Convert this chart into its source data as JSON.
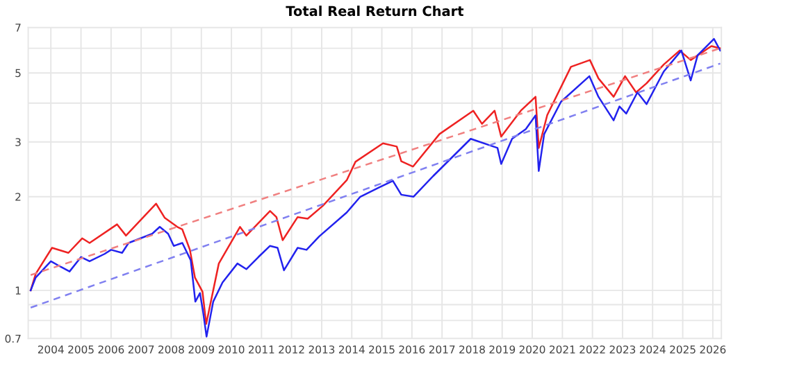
{
  "chart_data": {
    "type": "line",
    "title": "Total Real Return Chart",
    "log": "y",
    "grid": true,
    "marker": "none",
    "xlim": [
      "2003-04-01",
      "2026-04-15"
    ],
    "xticks": [
      "2004",
      "2005",
      "2006",
      "2007",
      "2008",
      "2009",
      "2010",
      "2011",
      "2012",
      "2013",
      "2014",
      "2015",
      "2016",
      "2017",
      "2018",
      "2019",
      "2020",
      "2021",
      "2022",
      "2023",
      "2024",
      "2025",
      "2026"
    ],
    "ylim": [
      0.7,
      7
    ],
    "yticks": [
      0.7,
      {
        "value": 0.8,
        "label": null
      },
      {
        "value": 0.9,
        "label": null
      },
      1,
      2,
      3,
      {
        "value": 4,
        "label": null
      },
      5,
      {
        "value": 6,
        "label": null
      },
      7
    ],
    "series": [
      {
        "color": "#ee2222",
        "line_style": "solid",
        "x": [
          "2003-05-01",
          "2003-07-01",
          "2004-01-15",
          "2004-08-01",
          "2005-01-15",
          "2005-04-15",
          "2006-03-15",
          "2006-07-01",
          "2007-07-01",
          "2007-10-15",
          "2008-03-15",
          "2008-05-15",
          "2008-08-15",
          "2008-10-15",
          "2009-01-15",
          "2009-03-01",
          "2009-08-01",
          "2010-04-15",
          "2010-07-01",
          "2011-04-15",
          "2011-07-01",
          "2011-09-15",
          "2012-03-15",
          "2012-07-15",
          "2013-01-15",
          "2013-11-01",
          "2014-02-15",
          "2015-01-15",
          "2015-07-01",
          "2015-08-25",
          "2016-01-15",
          "2016-12-01",
          "2018-01-15",
          "2018-05-01",
          "2018-10-01",
          "2018-12-20",
          "2019-08-15",
          "2020-02-10",
          "2020-03-20",
          "2020-07-01",
          "2021-04-15",
          "2021-12-01",
          "2022-03-15",
          "2022-09-15",
          "2023-02-01",
          "2023-06-15",
          "2023-10-20",
          "2024-05-15",
          "2024-11-25",
          "2025-04-08",
          "2025-12-15",
          "2026-04-01"
        ],
        "values": [
          1.0,
          1.13,
          1.37,
          1.32,
          1.47,
          1.42,
          1.63,
          1.5,
          1.9,
          1.71,
          1.6,
          1.57,
          1.35,
          1.1,
          0.99,
          0.78,
          1.22,
          1.6,
          1.5,
          1.8,
          1.72,
          1.45,
          1.72,
          1.7,
          1.87,
          2.26,
          2.59,
          2.97,
          2.9,
          2.6,
          2.5,
          3.18,
          3.78,
          3.43,
          3.78,
          3.12,
          3.78,
          4.19,
          2.87,
          3.66,
          5.23,
          5.5,
          4.8,
          4.19,
          4.88,
          4.33,
          4.63,
          5.32,
          5.9,
          5.5,
          6.1,
          6.0
        ]
      },
      {
        "color": "#2222ee",
        "line_style": "solid",
        "x": [
          "2003-05-01",
          "2003-07-01",
          "2004-01-01",
          "2004-05-01",
          "2004-08-15",
          "2005-01-01",
          "2005-04-15",
          "2005-10-15",
          "2006-01-01",
          "2006-05-15",
          "2006-08-01",
          "2007-05-15",
          "2007-08-15",
          "2007-11-25",
          "2008-02-01",
          "2008-05-15",
          "2008-08-25",
          "2008-10-20",
          "2008-12-15",
          "2009-01-20",
          "2009-03-05",
          "2009-05-25",
          "2009-09-15",
          "2010-03-15",
          "2010-07-01",
          "2010-11-25",
          "2011-04-15",
          "2011-07-15",
          "2011-10-01",
          "2012-03-15",
          "2012-07-01",
          "2012-12-01",
          "2013-11-01",
          "2014-04-15",
          "2014-11-25",
          "2015-05-15",
          "2015-08-25",
          "2016-01-20",
          "2016-09-15",
          "2017-12-15",
          "2018-11-05",
          "2018-12-20",
          "2019-05-01",
          "2019-10-15",
          "2020-02-10",
          "2020-03-20",
          "2020-05-25",
          "2020-12-15",
          "2021-11-25",
          "2022-03-15",
          "2022-09-15",
          "2022-11-25",
          "2023-02-15",
          "2023-07-01",
          "2023-10-20",
          "2024-05-15",
          "2024-12-15",
          "2025-04-08",
          "2025-07-01",
          "2026-01-15",
          "2026-04-01"
        ],
        "values": [
          1.0,
          1.1,
          1.24,
          1.19,
          1.15,
          1.28,
          1.24,
          1.31,
          1.35,
          1.32,
          1.42,
          1.52,
          1.6,
          1.52,
          1.39,
          1.42,
          1.25,
          0.92,
          0.98,
          0.86,
          0.71,
          0.92,
          1.06,
          1.22,
          1.17,
          1.28,
          1.39,
          1.37,
          1.16,
          1.37,
          1.35,
          1.49,
          1.78,
          2.0,
          2.14,
          2.25,
          2.03,
          2.0,
          2.33,
          3.07,
          2.87,
          2.55,
          3.07,
          3.3,
          3.65,
          2.42,
          3.18,
          4.04,
          4.88,
          4.19,
          3.52,
          3.9,
          3.7,
          4.33,
          3.97,
          5.05,
          5.9,
          4.73,
          5.7,
          6.43,
          5.9
        ]
      },
      {
        "color": "#f08080",
        "line_style": "dashed",
        "x": [
          "2003-05-01",
          "2026-04-01"
        ],
        "values": [
          1.12,
          6.0
        ]
      },
      {
        "color": "#8080f0",
        "line_style": "dashed",
        "x": [
          "2003-05-01",
          "2026-04-01"
        ],
        "values": [
          0.88,
          5.36
        ]
      }
    ]
  }
}
